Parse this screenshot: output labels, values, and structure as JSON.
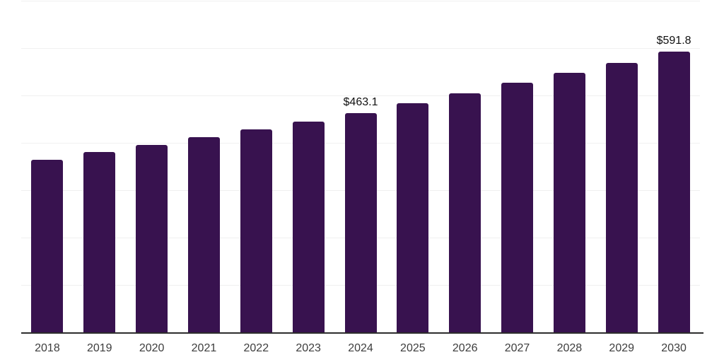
{
  "chart_data": {
    "type": "bar",
    "title": "",
    "xlabel": "",
    "ylabel": "",
    "categories": [
      "2018",
      "2019",
      "2020",
      "2021",
      "2022",
      "2023",
      "2024",
      "2025",
      "2026",
      "2027",
      "2028",
      "2029",
      "2030"
    ],
    "values": [
      363.5,
      380.5,
      396,
      412,
      428.5,
      444.5,
      463.1,
      484,
      505,
      526.5,
      548,
      568.5,
      591.8
    ],
    "data_labels": {
      "2024": "$463.1",
      "2030": "$591.8"
    },
    "ylim": [
      0,
      700
    ],
    "gridline_interval": 100,
    "grid": "horizontal-only",
    "legend": "none",
    "y_axis_labels_visible": false
  },
  "colors": {
    "bar": "#38124f",
    "gridline": "#f0f0f0",
    "axis_line": "#2d2d2d",
    "x_label": "#3d3d3d",
    "data_label": "#111111",
    "background": "#ffffff"
  }
}
